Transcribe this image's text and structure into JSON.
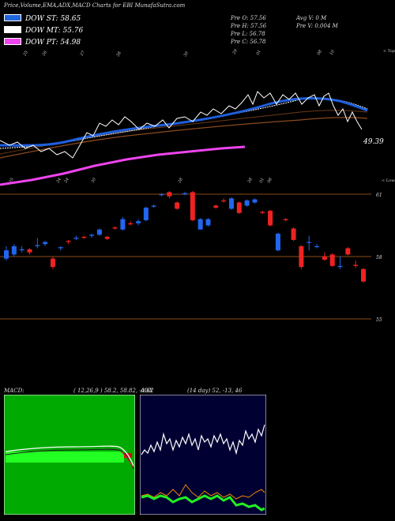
{
  "header": {
    "title": "Price,Volume,EMA,ADX,MACD Charts for EBI MunafaSutra.com"
  },
  "legend": [
    {
      "label": "DOW ST: 58.65",
      "color": "#2266dd"
    },
    {
      "label": "DOW MT: 55.76",
      "color": "#ffffff"
    },
    {
      "label": "DOW PT: 54.98",
      "color": "#ee44ee"
    }
  ],
  "ohlc": {
    "open": "Pre  O: 57.56",
    "high": "Pre  H: 57.56",
    "low": "Pre  L: 56.78",
    "close": "Pre  C: 56.78",
    "avg_volume": "Avg V: 0  M",
    "prev_volume": "Pre  V: 0.004  M"
  },
  "colors": {
    "up": "#2266ee",
    "down": "#ee2222",
    "ema_short": "#1f5fdd",
    "ema_mid": "#ffffff",
    "ema_long": "#8b4a1e",
    "dow_pt": "#ee44ee",
    "level_line": "#8a4a1a",
    "macd_bg": "#00aa00",
    "adx_bg": "#000033"
  },
  "chart_data": [
    {
      "type": "line",
      "title": "",
      "top_tick_labels": [
        "25",
        "26",
        "27",
        "28",
        "30",
        "29",
        "01",
        "08",
        "10"
      ],
      "top_axis_note": "< Tops",
      "bottom_tick_labels": [
        "25",
        "24",
        "24",
        "30",
        "28",
        "28",
        "01",
        "08"
      ],
      "bottom_axis_note": "< Lows",
      "last_value_label": "49.39"
    },
    {
      "type": "candlestick",
      "title": "",
      "ylabels": [
        "61",
        "58",
        "55"
      ],
      "levels": [
        61,
        58,
        55
      ],
      "candles": [
        {
          "o": 57.9,
          "c": 58.3,
          "h": 58.5,
          "l": 57.8
        },
        {
          "o": 58.1,
          "c": 58.5,
          "h": 58.6,
          "l": 58.0
        },
        {
          "o": 58.3,
          "c": 58.35,
          "h": 58.5,
          "l": 58.2
        },
        {
          "o": 58.35,
          "c": 58.2,
          "h": 58.4,
          "l": 58.1
        },
        {
          "o": 58.5,
          "c": 58.55,
          "h": 58.9,
          "l": 58.4
        },
        {
          "o": 58.6,
          "c": 58.7,
          "h": 58.75,
          "l": 58.5
        },
        {
          "o": 57.9,
          "c": 57.5,
          "h": 58.0,
          "l": 57.4
        },
        {
          "o": 58.4,
          "c": 58.45,
          "h": 58.5,
          "l": 58.3
        },
        {
          "o": 58.75,
          "c": 58.7,
          "h": 58.8,
          "l": 58.6
        },
        {
          "o": 58.85,
          "c": 58.9,
          "h": 59.0,
          "l": 58.8
        },
        {
          "o": 58.95,
          "c": 58.9,
          "h": 59.0,
          "l": 58.85
        },
        {
          "o": 59.0,
          "c": 59.05,
          "h": 59.1,
          "l": 58.9
        },
        {
          "o": 59.05,
          "c": 59.3,
          "h": 59.35,
          "l": 59.0
        },
        {
          "o": 58.95,
          "c": 58.85,
          "h": 59.0,
          "l": 58.8
        },
        {
          "o": 59.4,
          "c": 59.35,
          "h": 59.45,
          "l": 59.3
        },
        {
          "o": 59.3,
          "c": 59.8,
          "h": 59.9,
          "l": 59.25
        },
        {
          "o": 59.6,
          "c": 59.55,
          "h": 59.7,
          "l": 59.5
        },
        {
          "o": 59.6,
          "c": 59.7,
          "h": 59.8,
          "l": 59.5
        },
        {
          "o": 59.75,
          "c": 60.35,
          "h": 60.4,
          "l": 59.7
        },
        {
          "o": 60.4,
          "c": 60.45,
          "h": 60.5,
          "l": 60.35
        },
        {
          "o": 60.95,
          "c": 61.0,
          "h": 61.05,
          "l": 60.9
        },
        {
          "o": 61.1,
          "c": 60.9,
          "h": 61.15,
          "l": 60.8
        },
        {
          "o": 60.6,
          "c": 60.3,
          "h": 60.65,
          "l": 60.25
        },
        {
          "o": 61.0,
          "c": 61.05,
          "h": 61.1,
          "l": 60.95
        },
        {
          "o": 61.1,
          "c": 59.75,
          "h": 61.15,
          "l": 59.7
        },
        {
          "o": 59.3,
          "c": 59.8,
          "h": 59.85,
          "l": 59.3
        },
        {
          "o": 59.5,
          "c": 59.8,
          "h": 59.85,
          "l": 59.45
        },
        {
          "o": 60.45,
          "c": 60.35,
          "h": 60.5,
          "l": 60.3
        },
        {
          "o": 60.7,
          "c": 60.65,
          "h": 60.8,
          "l": 60.6
        },
        {
          "o": 60.3,
          "c": 60.8,
          "h": 60.85,
          "l": 60.25
        },
        {
          "o": 60.6,
          "c": 60.1,
          "h": 60.65,
          "l": 60.05
        },
        {
          "o": 60.45,
          "c": 60.7,
          "h": 60.75,
          "l": 60.4
        },
        {
          "o": 60.6,
          "c": 60.75,
          "h": 60.8,
          "l": 60.55
        },
        {
          "o": 60.15,
          "c": 60.1,
          "h": 60.2,
          "l": 60.05
        },
        {
          "o": 60.2,
          "c": 59.5,
          "h": 60.25,
          "l": 59.45
        },
        {
          "o": 58.3,
          "c": 59.1,
          "h": 59.15,
          "l": 58.25
        },
        {
          "o": 59.8,
          "c": 59.75,
          "h": 59.85,
          "l": 59.7
        },
        {
          "o": 59.35,
          "c": 58.8,
          "h": 59.4,
          "l": 58.75
        },
        {
          "o": 58.5,
          "c": 57.5,
          "h": 58.55,
          "l": 57.4
        },
        {
          "o": 58.7,
          "c": 58.7,
          "h": 59.0,
          "l": 58.3
        },
        {
          "o": 58.5,
          "c": 58.5,
          "h": 58.6,
          "l": 58.4
        },
        {
          "o": 58.0,
          "c": 57.85,
          "h": 58.2,
          "l": 57.8
        },
        {
          "o": 58.1,
          "c": 57.55,
          "h": 58.15,
          "l": 57.5
        },
        {
          "o": 57.5,
          "c": 57.55,
          "h": 58.0,
          "l": 57.4
        },
        {
          "o": 58.4,
          "c": 58.1,
          "h": 58.45,
          "l": 58.05
        },
        {
          "o": 57.6,
          "c": 57.55,
          "h": 57.8,
          "l": 57.45
        },
        {
          "o": 57.4,
          "c": 56.8,
          "h": 57.45,
          "l": 56.75
        }
      ]
    },
    {
      "type": "area",
      "title": "MACD:",
      "params": "( 12,26,9 ) 58.2,  58.82,  -0.62"
    },
    {
      "type": "line",
      "title": "ADX",
      "params": "(14  day) 52,  -13,  46"
    }
  ]
}
